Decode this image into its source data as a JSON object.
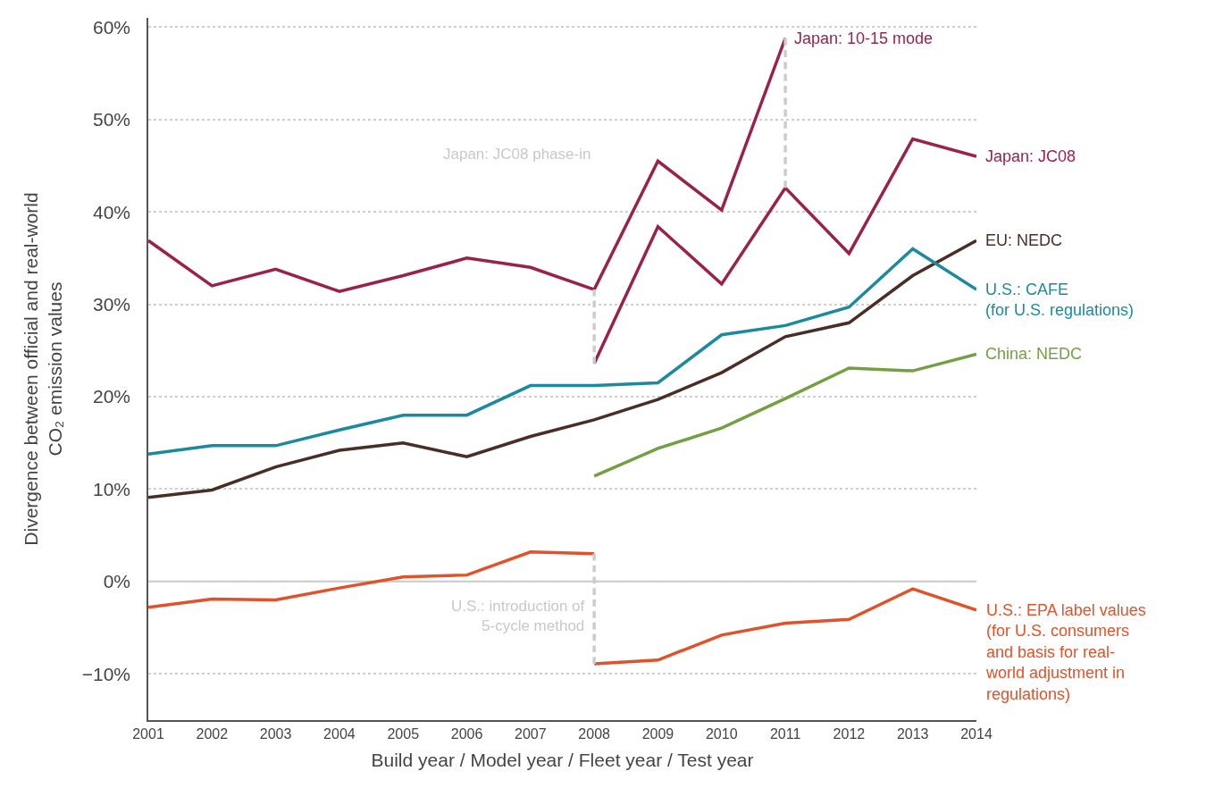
{
  "chart_data": {
    "type": "line",
    "xlabel": "Build year / Model year / Fleet year / Test year",
    "ylabel": "Divergence between official and real-world\nCO₂ emission values",
    "xlim": [
      2001,
      2014
    ],
    "xticks": [
      2001,
      2002,
      2003,
      2004,
      2005,
      2006,
      2007,
      2008,
      2009,
      2010,
      2011,
      2012,
      2013,
      2014
    ],
    "ylim": [
      -15,
      61
    ],
    "yticks": [
      {
        "value": -10,
        "label": "−10%"
      },
      {
        "value": 0,
        "label": "0%"
      },
      {
        "value": 10,
        "label": "10%"
      },
      {
        "value": 20,
        "label": "20%"
      },
      {
        "value": 30,
        "label": "30%"
      },
      {
        "value": 40,
        "label": "40%"
      },
      {
        "value": 50,
        "label": "50%"
      },
      {
        "value": 60,
        "label": "60%"
      }
    ],
    "grid": "y",
    "legend": false,
    "marker": "none",
    "line_style": "solid",
    "ref_lines": [
      {
        "axis": "y",
        "value": 0,
        "color": "#c8c8c8",
        "line_style": "solid"
      }
    ],
    "annotations": [
      "Japan: JC08 phase-in",
      {
        "text": "U.S.: introduction of\n5-cycle method",
        "x": 2008,
        "y": -3.7
      }
    ],
    "series": [
      {
        "name": "Japan: 10-15 mode",
        "color": "#9b2247",
        "x": [
          2001,
          2002,
          2003,
          2004,
          2005,
          2006,
          2007,
          2008,
          2009,
          2010,
          2011
        ],
        "values": [
          36.9,
          32.0,
          33.8,
          31.4,
          33.1,
          35.0,
          34.0,
          31.6,
          45.5,
          40.2,
          58.8
        ]
      },
      {
        "name": "Japan: JC08",
        "color": "#9b2247",
        "x": [
          2008,
          2009,
          2010,
          2011,
          2012,
          2013,
          2014
        ],
        "values": [
          23.6,
          38.4,
          32.2,
          42.6,
          35.5,
          47.9,
          46.0
        ]
      },
      {
        "name": "EU: NEDC",
        "color": "#4a2e26",
        "x": [
          2001,
          2002,
          2003,
          2004,
          2005,
          2006,
          2007,
          2008,
          2009,
          2010,
          2011,
          2012,
          2013,
          2014
        ],
        "values": [
          9.1,
          9.9,
          12.4,
          14.2,
          15.0,
          13.5,
          15.7,
          17.5,
          19.7,
          22.6,
          26.5,
          28.0,
          33.1,
          36.9
        ]
      },
      {
        "name": "U.S.: CAFE\n(for U.S. regulations)",
        "color": "#1b8a9f",
        "x": [
          2001,
          2002,
          2003,
          2004,
          2005,
          2006,
          2007,
          2008,
          2009,
          2010,
          2011,
          2012,
          2013,
          2014
        ],
        "values": [
          13.8,
          14.7,
          14.7,
          16.4,
          18.0,
          18.0,
          21.2,
          21.2,
          21.5,
          26.7,
          27.7,
          29.7,
          36.0,
          31.6
        ]
      },
      {
        "name": "China: NEDC",
        "color": "#72a043",
        "x": [
          2008,
          2009,
          2010,
          2011,
          2012,
          2013,
          2014
        ],
        "values": [
          11.4,
          14.4,
          16.6,
          19.8,
          23.1,
          22.8,
          24.6
        ]
      },
      {
        "color": "#e0532a",
        "x": [
          2001,
          2002,
          2003,
          2004,
          2005,
          2006,
          2007,
          2008
        ],
        "values": [
          -2.8,
          -1.9,
          -2.0,
          -0.7,
          0.5,
          0.7,
          3.2,
          3.0
        ]
      },
      {
        "name": "U.S.: EPA label values\n(for U.S. consumers\nand basis for real-\nworld adjustment in\nregulations)",
        "color": "#e0532a",
        "x": [
          2008,
          2009,
          2010,
          2011,
          2012,
          2013,
          2014
        ],
        "values": [
          -8.9,
          -8.5,
          -5.8,
          -4.5,
          -4.1,
          -0.8,
          -3.1
        ]
      },
      {
        "color": "#cccccc",
        "line_style": "dashed",
        "x": [
          2008,
          2008
        ],
        "values": [
          31.6,
          23.6
        ]
      },
      {
        "color": "#cccccc",
        "line_style": "dashed",
        "x": [
          2011,
          2011
        ],
        "values": [
          58.8,
          42.6
        ]
      },
      {
        "color": "#cccccc",
        "line_style": "dashed",
        "x": [
          2008,
          2008
        ],
        "values": [
          3.0,
          -8.9
        ]
      }
    ]
  }
}
